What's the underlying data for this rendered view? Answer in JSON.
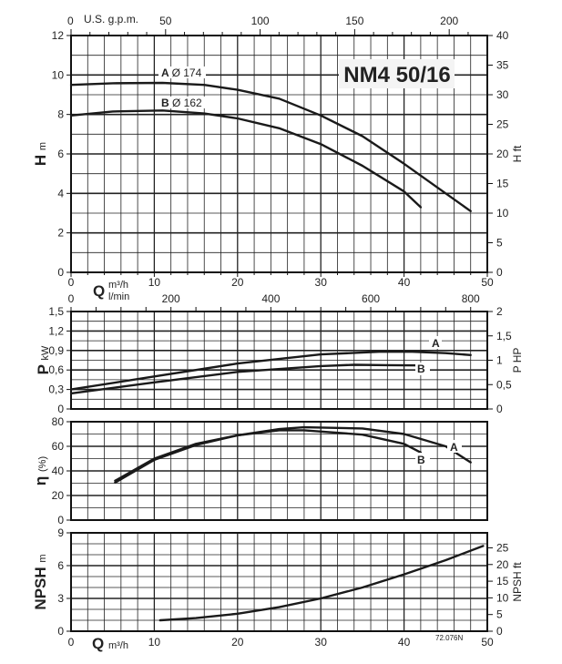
{
  "chart_data": [
    {
      "type": "line",
      "id": "head",
      "title": "NM4 50/16",
      "ylabel": "H",
      "yunit": "m",
      "y2label": "H ft",
      "xlabel": "Q",
      "xunit": "m³/h",
      "xlim": [
        0,
        50
      ],
      "ylim": [
        0,
        12
      ],
      "y2lim": [
        0,
        40
      ],
      "xticks": [
        "0",
        "10",
        "20",
        "30",
        "40",
        "50"
      ],
      "yticks": [
        "0",
        "2",
        "4",
        "6",
        "8",
        "10",
        "12"
      ],
      "y2ticks": [
        "0",
        "5",
        "10",
        "15",
        "20",
        "25",
        "30",
        "35",
        "40"
      ],
      "top_axis": {
        "label": "U.S. g.p.m.",
        "ticks": [
          "0",
          "50",
          "100",
          "150",
          "200"
        ],
        "values": [
          0,
          50,
          100,
          150,
          200
        ]
      },
      "bottom_axis2": {
        "label": "l/min",
        "ticks": [
          "0",
          "200",
          "400",
          "600",
          "800"
        ],
        "values": [
          0,
          200,
          400,
          600,
          800
        ]
      },
      "grid": true,
      "series": [
        {
          "name": "A",
          "label_letter": "A",
          "label_diam": "Ø 174",
          "points": [
            [
              0,
              9.5
            ],
            [
              5,
              9.58
            ],
            [
              11,
              9.6
            ],
            [
              16,
              9.5
            ],
            [
              20,
              9.25
            ],
            [
              25,
              8.8
            ],
            [
              30,
              7.95
            ],
            [
              35,
              6.9
            ],
            [
              40,
              5.5
            ],
            [
              45,
              4.0
            ],
            [
              48,
              3.1
            ]
          ]
        },
        {
          "name": "B",
          "label_letter": "B",
          "label_diam": "Ø 162",
          "points": [
            [
              0,
              7.95
            ],
            [
              5,
              8.15
            ],
            [
              11,
              8.2
            ],
            [
              16,
              8.05
            ],
            [
              20,
              7.8
            ],
            [
              25,
              7.3
            ],
            [
              30,
              6.5
            ],
            [
              35,
              5.4
            ],
            [
              40,
              4.1
            ],
            [
              42,
              3.3
            ]
          ]
        }
      ]
    },
    {
      "type": "line",
      "id": "power",
      "ylabel": "P",
      "yunit": "kW",
      "y2label": "P HP",
      "xlim": [
        0,
        50
      ],
      "ylim": [
        0,
        1.5
      ],
      "y2lim": [
        0,
        2
      ],
      "yticks": [
        "0",
        "0,3",
        "0,6",
        "0,9",
        "1,2",
        "1,5"
      ],
      "y2ticks": [
        "0",
        "0,5",
        "1",
        "1,5",
        "2"
      ],
      "grid": true,
      "series": [
        {
          "name": "A",
          "points": [
            [
              0,
              0.3
            ],
            [
              10,
              0.5
            ],
            [
              20,
              0.7
            ],
            [
              30,
              0.84
            ],
            [
              37,
              0.88
            ],
            [
              41,
              0.88
            ],
            [
              45,
              0.86
            ],
            [
              48,
              0.83
            ]
          ]
        },
        {
          "name": "B",
          "points": [
            [
              0,
              0.24
            ],
            [
              10,
              0.41
            ],
            [
              20,
              0.57
            ],
            [
              30,
              0.66
            ],
            [
              34,
              0.68
            ],
            [
              38,
              0.675
            ],
            [
              42,
              0.67
            ]
          ]
        }
      ]
    },
    {
      "type": "line",
      "id": "efficiency",
      "ylabel": "η",
      "yunit": "(%)",
      "xlim": [
        0,
        50
      ],
      "ylim": [
        0,
        80
      ],
      "yticks": [
        "0",
        "20",
        "40",
        "60",
        "80"
      ],
      "grid": true,
      "series": [
        {
          "name": "A",
          "points": [
            [
              5.3,
              32
            ],
            [
              10,
              50
            ],
            [
              15,
              62
            ],
            [
              20,
              69
            ],
            [
              25,
              74
            ],
            [
              28,
              75.5
            ],
            [
              35,
              74.5
            ],
            [
              40,
              70
            ],
            [
              45,
              60
            ],
            [
              48,
              47
            ]
          ]
        },
        {
          "name": "B",
          "points": [
            [
              5.3,
              30.5
            ],
            [
              10,
              49
            ],
            [
              15,
              61
            ],
            [
              20,
              69
            ],
            [
              25,
              73
            ],
            [
              28,
              73
            ],
            [
              35,
              69.5
            ],
            [
              40,
              62
            ],
            [
              42,
              55
            ]
          ]
        }
      ]
    },
    {
      "type": "line",
      "id": "npsh",
      "ylabel": "NPSH",
      "yunit": "m",
      "y2label": "NPSH ft",
      "xlabel": "Q",
      "xunit": "m³/h",
      "xlim": [
        0,
        50
      ],
      "ylim": [
        0,
        9
      ],
      "y2lim": [
        0,
        29.5
      ],
      "xticks": [
        "0",
        "10",
        "20",
        "30",
        "40",
        "50"
      ],
      "yticks": [
        "0",
        "3",
        "6",
        "9"
      ],
      "y2ticks": [
        "0",
        "5",
        "10",
        "15",
        "20",
        "25"
      ],
      "grid": true,
      "series": [
        {
          "name": "NPSH",
          "points": [
            [
              10.7,
              1
            ],
            [
              15,
              1.2
            ],
            [
              20,
              1.6
            ],
            [
              25,
              2.2
            ],
            [
              30,
              3
            ],
            [
              35,
              4
            ],
            [
              40,
              5.2
            ],
            [
              45,
              6.5
            ],
            [
              49.5,
              7.8
            ]
          ]
        }
      ]
    }
  ],
  "footer_code": "72.076N"
}
